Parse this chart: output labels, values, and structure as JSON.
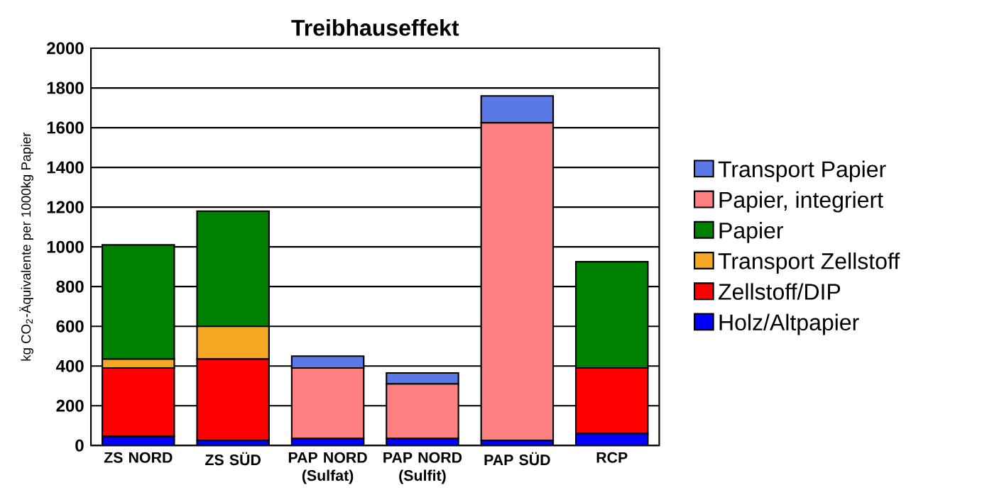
{
  "chart_data": {
    "type": "bar",
    "title": "Treibhauseffekt",
    "ylabel": "kg CO$_{2}$-Äquivalente per 1000kg Papier",
    "stacked": true,
    "categories": [
      "ZS NORD",
      "ZS SÜD",
      "PAP NORD (Sulfat)",
      "PAP NORD (Sulfit)",
      "PAP SÜD",
      "RCP"
    ],
    "series": [
      {
        "name": "Holz/Altpapier",
        "color": "#0000ff",
        "values": [
          45,
          25,
          35,
          35,
          25,
          60
        ]
      },
      {
        "name": "Zellstoff/DIP",
        "color": "#ff0000",
        "values": [
          345,
          410,
          null,
          null,
          null,
          330
        ]
      },
      {
        "name": "Transport Zellstoff",
        "color": "#f5a623",
        "values": [
          45,
          165,
          null,
          null,
          null,
          null
        ]
      },
      {
        "name": "Papier",
        "color": "#008000",
        "values": [
          575,
          580,
          null,
          null,
          null,
          535
        ]
      },
      {
        "name": "Papier, integriert",
        "color": "#ff8080",
        "values": [
          null,
          null,
          355,
          275,
          1600,
          null
        ]
      },
      {
        "name": "Transport Papier",
        "color": "#5a78e6",
        "values": [
          null,
          null,
          60,
          55,
          135,
          null
        ]
      }
    ],
    "ylim": [
      0,
      2000
    ],
    "yticks": [
      0,
      200,
      400,
      600,
      800,
      1000,
      1200,
      1400,
      1600,
      1800,
      2000
    ],
    "grid": "y",
    "legend": "right"
  }
}
